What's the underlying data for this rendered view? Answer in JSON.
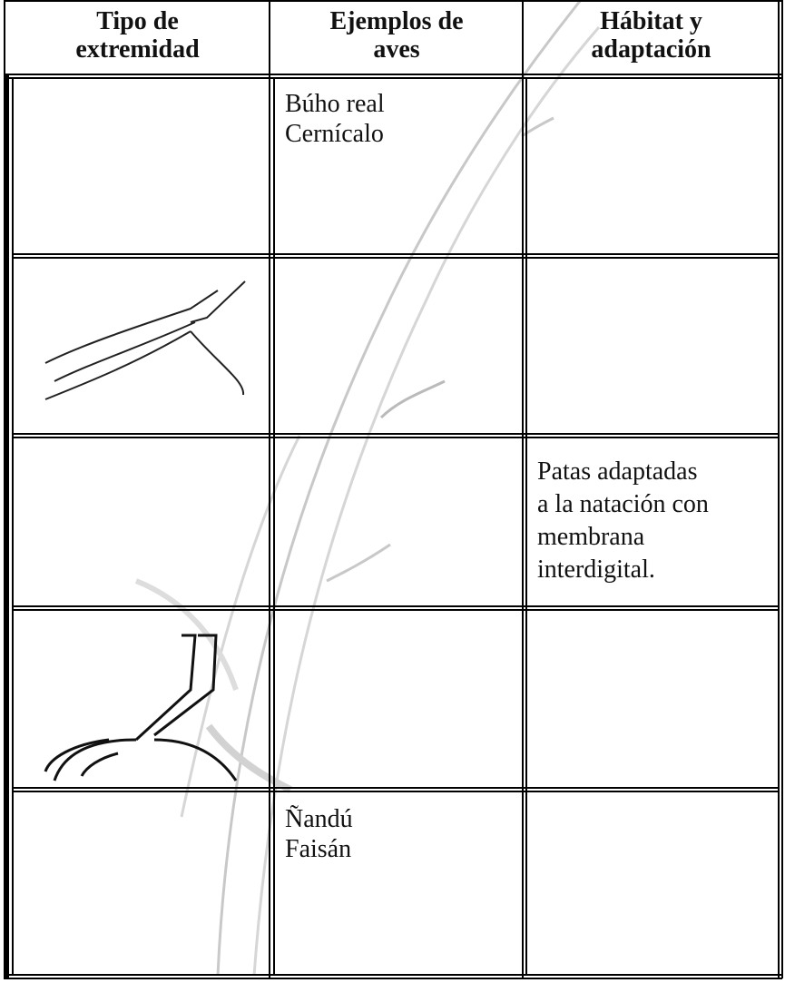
{
  "table": {
    "header": [
      [
        "Tipo de",
        "extremidad"
      ],
      [
        "Ejemplos de",
        "aves"
      ],
      [
        "Hábitat y",
        "adaptación"
      ]
    ],
    "rows": [
      {
        "aves": [
          "Búho real",
          "Cernícalo"
        ]
      },
      {},
      {
        "habitat": [
          "Patas adaptadas",
          "a la natación con",
          "membrana",
          "interdigital."
        ]
      },
      {},
      {
        "aves": [
          "Ñandú",
          "Faisán"
        ]
      }
    ]
  }
}
